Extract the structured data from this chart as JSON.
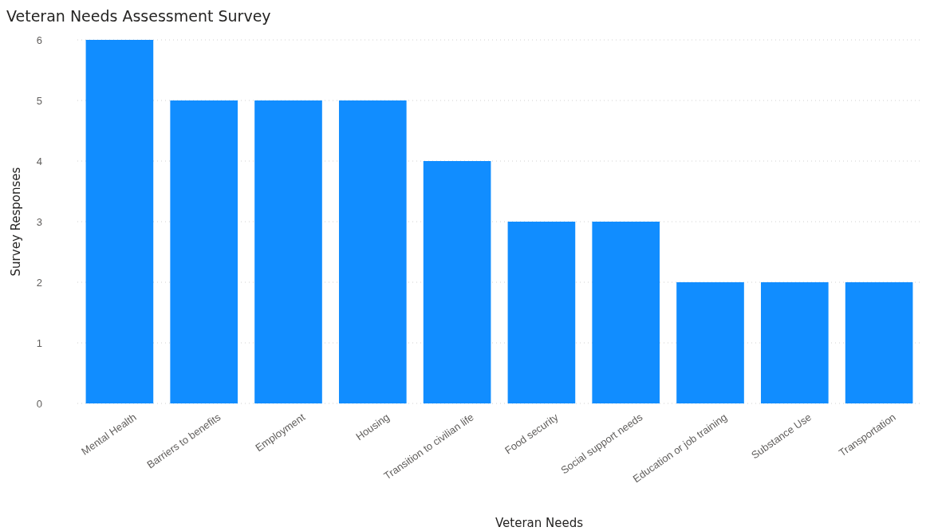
{
  "chart_data": {
    "type": "bar",
    "title": "Veteran Needs Assessment Survey",
    "xlabel": "Veteran Needs",
    "ylabel": "Survey Responses",
    "categories": [
      "Mental Health",
      "Barriers to benefits",
      "Employment",
      "Housing",
      "Transition to civilian life",
      "Food security",
      "Social support needs",
      "Education or job training",
      "Substance Use",
      "Transportation"
    ],
    "values": [
      6,
      5,
      5,
      5,
      4,
      3,
      3,
      2,
      2,
      2
    ],
    "color": "#118dff",
    "ylim": [
      0,
      6
    ],
    "yticks": [
      0,
      1,
      2,
      3,
      4,
      5,
      6
    ],
    "grid": "y"
  }
}
